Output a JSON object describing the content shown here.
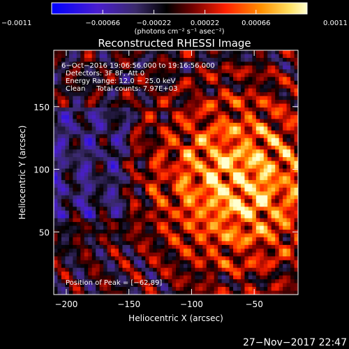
{
  "chart_data": {
    "type": "heatmap",
    "title": "Reconstructed RHESSI Image",
    "xlabel": "Heliocentric X (arcsec)",
    "ylabel": "Heliocentric Y (arcsec)",
    "xlim": [
      -210,
      -15
    ],
    "ylim": [
      0,
      195
    ],
    "xticks": [
      -200,
      -150,
      -100,
      -50
    ],
    "xtick_labels": [
      "−200",
      "−150",
      "−100",
      "−50"
    ],
    "yticks": [
      50,
      100,
      150
    ],
    "ytick_labels": [
      "50",
      "100",
      "150"
    ],
    "colorbar": {
      "range": [
        -0.0011,
        0.0011
      ],
      "ticks": [
        -0.0011,
        -0.00066,
        -0.00022,
        0.00022,
        0.00066,
        0.0011
      ],
      "tick_labels": [
        "−0.0011",
        "−0.00066",
        "−0.00022",
        "0.00022",
        "0.00066",
        "0.0011"
      ],
      "units_label": "(photons cm⁻² s⁻¹ asec⁻²)",
      "colors": [
        "#0000ff",
        "#5a2a9a",
        "#000000",
        "#8b0000",
        "#ff3300",
        "#ffaa00",
        "#ffffc0"
      ]
    },
    "annotations": [
      "6−Oct−2016 19:06:56.000 to 19:16:56.000",
      "Detectors: 3F 8F, Att 0",
      "Energy Range: 12.0 − 25.0 keV",
      "Clean     Total counts: 7.97E+03"
    ],
    "peak_label": "Position of Peak = [−62,89]",
    "peak": {
      "x": -62,
      "y": 89
    },
    "grid": false
  },
  "footer": {
    "timestamp": "27−Nov−2017 22:47"
  }
}
